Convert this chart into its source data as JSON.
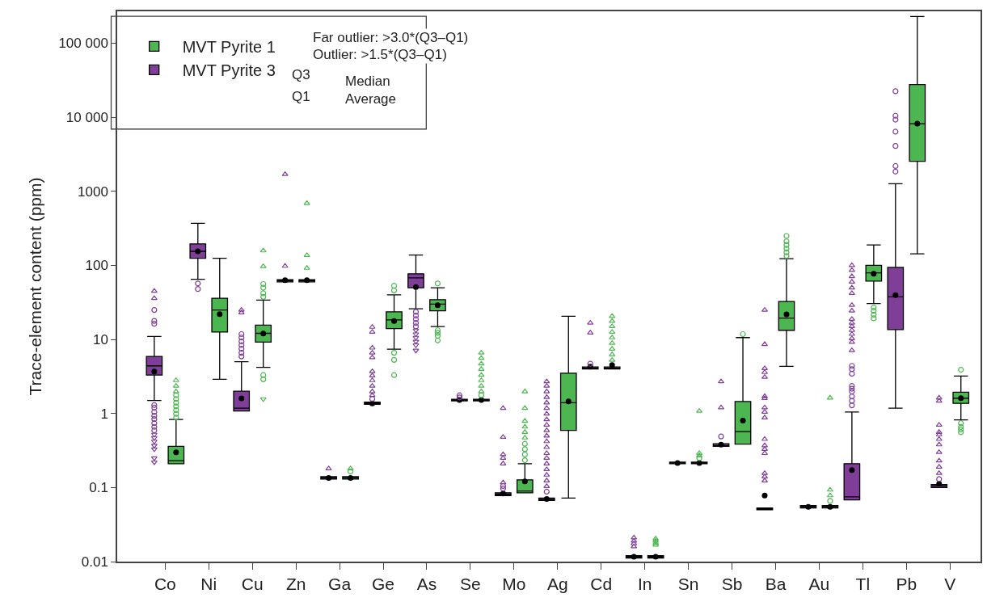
{
  "chart_data": {
    "type": "box",
    "ylabel": "Trace-element content (ppm)",
    "categories": [
      "Co",
      "Ni",
      "Cu",
      "Zn",
      "Ga",
      "Ge",
      "As",
      "Se",
      "Mo",
      "Ag",
      "Cd",
      "In",
      "Sn",
      "Sb",
      "Ba",
      "Au",
      "Tl",
      "Pb",
      "V"
    ],
    "log": "y",
    "ylim": [
      0.01,
      270000
    ],
    "yticks": [
      {
        "value": 100000,
        "label": "100 000"
      },
      {
        "value": 10000,
        "label": "10 000"
      },
      1000,
      100,
      10,
      1,
      0.1,
      0.01
    ],
    "legend": "top left",
    "annotations": [
      "Far outlier: >3.0*(Q3–Q1)",
      "Outlier: >1.5*(Q3–Q1)",
      "Q3",
      "Median",
      "Q1",
      "Average"
    ],
    "series": [
      {
        "name": "MVT Pyrite 3",
        "color": "#7f3f98",
        "boxes": [
          {
            "low": 1.5,
            "q1": 3.3,
            "median": 4.4,
            "q3": 5.9,
            "high": 11,
            "mean": 3.7,
            "outliers": [
              45,
              36,
              25,
              17.8,
              16.3,
              1.3,
              1.2,
              1.05,
              0.93,
              0.84,
              0.74,
              0.66,
              0.59,
              0.52,
              0.47,
              0.42,
              0.37,
              0.33,
              0.25,
              0.22
            ]
          },
          {
            "low": 65,
            "q1": 125,
            "median": 155,
            "q3": 195,
            "high": 370,
            "mean": 155,
            "outliers": [
              57,
              48
            ]
          },
          {
            "low": 1.08,
            "q1": 1.08,
            "median": 1.18,
            "q3": 2.0,
            "high": 5.0,
            "mean": 1.6,
            "outliers": [
              25,
              23,
              11.8,
              10.6,
              9.4,
              8.4,
              7.5,
              6.6,
              5.9
            ]
          },
          {
            "low": 60,
            "q1": 60,
            "median": 62,
            "q3": 64,
            "high": 64,
            "mean": 63,
            "outliers": [
              1700,
              98
            ]
          },
          {
            "low": 0.13,
            "q1": 0.13,
            "median": 0.135,
            "q3": 0.14,
            "high": 0.14,
            "mean": 0.135,
            "outliers": [
              0.18
            ]
          },
          {
            "low": 1.33,
            "q1": 1.33,
            "median": 1.37,
            "q3": 1.42,
            "high": 1.42,
            "mean": 1.37,
            "outliers": [
              14.7,
              12.6,
              7.7,
              6.6,
              5.7,
              3.7,
              3.25,
              2.8,
              2.35,
              1.98,
              1.76,
              1.57
            ]
          },
          {
            "low": 26,
            "q1": 50,
            "median": 68,
            "q3": 77,
            "high": 138,
            "mean": 51,
            "outliers": [
              23.6,
              21,
              18.8,
              16.7,
              15,
              13.3,
              11.8,
              10.6,
              9.4,
              8.4,
              7.1
            ]
          },
          {
            "low": 1.48,
            "q1": 1.48,
            "median": 1.52,
            "q3": 1.56,
            "high": 1.56,
            "mean": 1.52,
            "outliers": [
              1.76,
              1.65
            ]
          },
          {
            "low": 0.078,
            "q1": 0.078,
            "median": 0.081,
            "q3": 0.085,
            "high": 0.085,
            "mean": 0.083,
            "outliers": [
              1.18,
              0.48,
              0.28,
              0.25,
              0.21,
              0.117,
              0.105,
              0.097
            ]
          },
          {
            "low": 0.067,
            "q1": 0.067,
            "median": 0.069,
            "q3": 0.072,
            "high": 0.072,
            "mean": 0.07,
            "outliers": [
              2.7,
              2.35,
              1.98,
              1.66,
              1.4,
              1.18,
              0.99,
              0.83,
              0.7,
              0.59,
              0.5,
              0.42,
              0.35,
              0.29,
              0.25,
              0.21,
              0.176,
              0.148,
              0.124,
              0.104,
              0.088
            ]
          },
          {
            "low": 4.0,
            "q1": 4.0,
            "median": 4.1,
            "q3": 4.25,
            "high": 4.25,
            "mean": 4.3,
            "outliers": [
              16.7,
              12.3,
              4.7
            ]
          },
          {
            "low": 0.0112,
            "q1": 0.0112,
            "median": 0.0116,
            "q3": 0.012,
            "high": 0.012,
            "mean": 0.0116,
            "outliers": [
              0.021,
              0.019,
              0.0175,
              0.016
            ]
          },
          {
            "low": 0.21,
            "q1": 0.21,
            "median": 0.215,
            "q3": 0.22,
            "high": 0.22,
            "mean": 0.215
          },
          {
            "low": 0.36,
            "q1": 0.36,
            "median": 0.37,
            "q3": 0.39,
            "high": 0.39,
            "mean": 0.38,
            "outliers": [
              2.7,
              1.2,
              0.49
            ]
          },
          {
            "low": 0.05,
            "q1": 0.05,
            "median": 0.051,
            "q3": 0.053,
            "high": 0.053,
            "mean": 0.078,
            "outliers": [
              25,
              8.6,
              4.07,
              3.6,
              3.1,
              1.7,
              1.6,
              1.2,
              1.05,
              0.88,
              0.45,
              0.37,
              0.33,
              0.29,
              0.156,
              0.14,
              0.124
            ]
          },
          {
            "low": 0.053,
            "q1": 0.053,
            "median": 0.055,
            "q3": 0.057,
            "high": 0.057,
            "mean": 0.055
          },
          {
            "low": 0.068,
            "q1": 0.068,
            "median": 0.075,
            "q3": 0.21,
            "high": 1.05,
            "mean": 0.172,
            "outliers": [
              100,
              86,
              71,
              60,
              50,
              42,
              29,
              24.4,
              18.8,
              16.7,
              15,
              13.3,
              11.8,
              10.3,
              9.2,
              7.1,
              4.4,
              3.97,
              3.45,
              2.35,
              2.16,
              1.98,
              1.7,
              1.48,
              1.29
            ]
          },
          {
            "low": 1.18,
            "q1": 13.6,
            "median": 37.6,
            "q3": 94,
            "high": 1270,
            "mean": 39.6,
            "outliers": [
              22500,
              10500,
              9300,
              6400,
              4100,
              2200,
              1850
            ]
          },
          {
            "low": 0.1,
            "q1": 0.1,
            "median": 0.105,
            "q3": 0.11,
            "high": 0.11,
            "mean": 0.112,
            "outliers": [
              1.63,
              1.48,
              0.7,
              0.56,
              0.52,
              0.45,
              0.38,
              0.3,
              0.23,
              0.19,
              0.156,
              0.13
            ]
          }
        ]
      },
      {
        "name": "MVT Pyrite 1",
        "color": "#4cb751",
        "boxes": [
          {
            "low": 0.21,
            "q1": 0.21,
            "median": 0.23,
            "q3": 0.36,
            "high": 0.83,
            "mean": 0.3,
            "outliers": [
              2.8,
              2.35,
              1.98,
              1.76,
              1.57,
              1.4,
              1.25,
              1.11,
              0.99,
              0.88
            ]
          },
          {
            "low": 2.9,
            "q1": 12.6,
            "median": 25,
            "q3": 36,
            "high": 125,
            "mean": 22
          },
          {
            "low": 4.2,
            "q1": 9.2,
            "median": 12.1,
            "q3": 15.6,
            "high": 34,
            "mean": 12,
            "outliers": [
              158,
              97,
              56,
              50,
              42,
              37.6,
              3.3,
              2.9,
              1.57
            ]
          },
          {
            "low": 60,
            "q1": 60,
            "median": 62,
            "q3": 64,
            "high": 64,
            "mean": 63,
            "outliers": [
              690,
              137,
              92
            ]
          },
          {
            "low": 0.13,
            "q1": 0.13,
            "median": 0.135,
            "q3": 0.14,
            "high": 0.14,
            "mean": 0.135,
            "outliers": [
              0.18,
              0.165
            ]
          },
          {
            "low": 7.4,
            "q1": 14,
            "median": 18.4,
            "q3": 23.6,
            "high": 40,
            "mean": 17.7,
            "outliers": [
              53,
              46,
              6.6,
              5.3,
              3.3
            ]
          },
          {
            "low": 14.9,
            "q1": 24.4,
            "median": 30,
            "q3": 34.5,
            "high": 50,
            "mean": 29,
            "outliers": [
              57,
              13.3,
              12.3,
              11.2,
              9.7
            ]
          },
          {
            "low": 1.48,
            "q1": 1.48,
            "median": 1.52,
            "q3": 1.56,
            "high": 1.56,
            "mean": 1.52,
            "outliers": [
              6.6,
              5.6,
              4.7,
              3.97,
              3.3,
              2.8,
              2.35,
              1.98,
              1.76
            ]
          },
          {
            "low": 0.085,
            "q1": 0.085,
            "median": 0.09,
            "q3": 0.127,
            "high": 0.21,
            "mean": 0.121,
            "outliers": [
              1.98,
              1.18,
              0.79,
              0.66,
              0.56,
              0.47,
              0.39,
              0.33,
              0.28,
              0.234
            ]
          },
          {
            "low": 0.072,
            "q1": 0.59,
            "median": 1.4,
            "q3": 3.5,
            "high": 20.6,
            "mean": 1.46
          },
          {
            "low": 4.0,
            "q1": 4.0,
            "median": 4.1,
            "q3": 4.25,
            "high": 4.25,
            "mean": 4.5,
            "outliers": [
              20.6,
              17.7,
              15,
              12.6,
              10.6,
              8.9,
              7.45,
              6.25,
              5.26
            ]
          },
          {
            "low": 0.0112,
            "q1": 0.0112,
            "median": 0.0116,
            "q3": 0.012,
            "high": 0.012,
            "mean": 0.0116,
            "outliers": [
              0.0203,
              0.019,
              0.0178,
              0.0168
            ]
          },
          {
            "low": 0.21,
            "q1": 0.21,
            "median": 0.215,
            "q3": 0.22,
            "high": 0.22,
            "mean": 0.215,
            "outliers": [
              1.08,
              0.29,
              0.27,
              0.25
            ]
          },
          {
            "low": 0.385,
            "q1": 0.385,
            "median": 0.57,
            "q3": 1.45,
            "high": 10.6,
            "mean": 0.8,
            "outliers": [
              11.8
            ]
          },
          {
            "low": 4.33,
            "q1": 13.3,
            "median": 19.4,
            "q3": 32.6,
            "high": 123,
            "mean": 21.9,
            "outliers": [
              250,
              211,
              189,
              168,
              150,
              134
            ]
          },
          {
            "low": 0.053,
            "q1": 0.053,
            "median": 0.055,
            "q3": 0.057,
            "high": 0.057,
            "mean": 0.055,
            "outliers": [
              1.63,
              0.093,
              0.078,
              0.066
            ]
          },
          {
            "low": 30.5,
            "q1": 61.5,
            "median": 79.6,
            "q3": 100,
            "high": 189,
            "mean": 77,
            "outliers": [
              27,
              24.4,
              21.6,
              19.3
            ]
          },
          {
            "low": 143,
            "q1": 2540,
            "median": 8200,
            "q3": 27700,
            "high": 230000,
            "mean": 8200
          },
          {
            "low": 0.82,
            "q1": 1.37,
            "median": 1.61,
            "q3": 1.94,
            "high": 3.2,
            "mean": 1.61,
            "outliers": [
              3.9,
              0.74,
              0.66,
              0.61,
              0.56
            ]
          }
        ]
      }
    ]
  }
}
